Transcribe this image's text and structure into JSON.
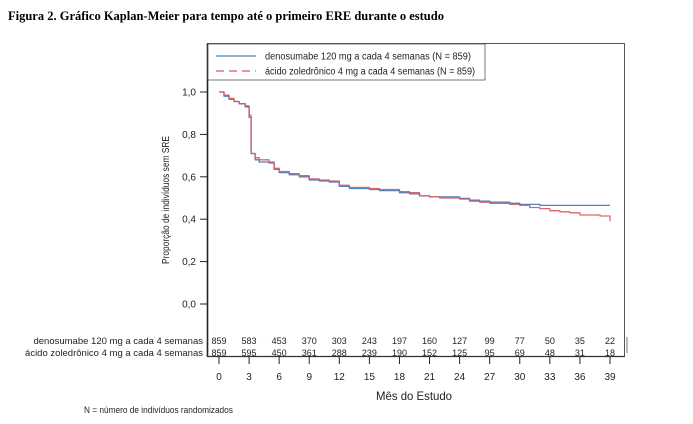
{
  "figure_title": "Figura 2. Gráfico Kaplan-Meier para tempo até o primeiro ERE durante o estudo",
  "footnote": "N = número de indivíduos randomizados",
  "chart_data": {
    "type": "line",
    "title": "Figura 2. Gráfico Kaplan-Meier para tempo até o primeiro ERE durante o estudo",
    "xlabel": "Mês do Estudo",
    "ylabel": "Proporção de indivíduos sem SRE",
    "xlim": [
      0,
      39
    ],
    "ylim": [
      0.0,
      1.0
    ],
    "x_ticks": [
      0,
      3,
      6,
      9,
      12,
      15,
      18,
      21,
      24,
      27,
      30,
      33,
      36,
      39
    ],
    "x_tick_labels": [
      "0",
      "3",
      "6",
      "9",
      "12",
      "15",
      "18",
      "21",
      "24",
      "27",
      "30",
      "33",
      "36",
      "39"
    ],
    "y_ticks": [
      0.0,
      0.2,
      0.4,
      0.6,
      0.8,
      1.0
    ],
    "y_tick_labels": [
      "0,0",
      "0,2",
      "0,4",
      "0,6",
      "0,8",
      "1,0"
    ],
    "grid": false,
    "legend_position": "top",
    "series": [
      {
        "name": "denosumabe 120 mg a cada 4 semanas (N = 859)",
        "color": "#4a86c0",
        "style": "solid",
        "points": [
          [
            0,
            1.0
          ],
          [
            0.5,
            0.98
          ],
          [
            1,
            0.965
          ],
          [
            1.5,
            0.955
          ],
          [
            2,
            0.945
          ],
          [
            2.6,
            0.93
          ],
          [
            3,
            0.88
          ],
          [
            3.2,
            0.71
          ],
          [
            3.6,
            0.68
          ],
          [
            4,
            0.67
          ],
          [
            5,
            0.665
          ],
          [
            5.5,
            0.635
          ],
          [
            6,
            0.62
          ],
          [
            7,
            0.61
          ],
          [
            8,
            0.6
          ],
          [
            9,
            0.585
          ],
          [
            10,
            0.58
          ],
          [
            11,
            0.575
          ],
          [
            12,
            0.555
          ],
          [
            13,
            0.545
          ],
          [
            15,
            0.54
          ],
          [
            16,
            0.535
          ],
          [
            18,
            0.525
          ],
          [
            19,
            0.52
          ],
          [
            20,
            0.51
          ],
          [
            21,
            0.505
          ],
          [
            22,
            0.505
          ],
          [
            24,
            0.498
          ],
          [
            25,
            0.49
          ],
          [
            26,
            0.485
          ],
          [
            27,
            0.48
          ],
          [
            29,
            0.475
          ],
          [
            30,
            0.47
          ],
          [
            31,
            0.47
          ],
          [
            32,
            0.465
          ],
          [
            33,
            0.465
          ],
          [
            36,
            0.465
          ],
          [
            39,
            0.465
          ]
        ]
      },
      {
        "name": "ácido zoledrônico 4 mg a cada 4 semanas (N = 859)",
        "color": "#d9575e",
        "style": "dashed",
        "points": [
          [
            0,
            1.0
          ],
          [
            0.5,
            0.985
          ],
          [
            1,
            0.97
          ],
          [
            1.5,
            0.955
          ],
          [
            2,
            0.945
          ],
          [
            2.6,
            0.935
          ],
          [
            3,
            0.89
          ],
          [
            3.2,
            0.71
          ],
          [
            3.6,
            0.69
          ],
          [
            4,
            0.68
          ],
          [
            5,
            0.67
          ],
          [
            5.5,
            0.64
          ],
          [
            6,
            0.625
          ],
          [
            7,
            0.615
          ],
          [
            8,
            0.605
          ],
          [
            9,
            0.59
          ],
          [
            10,
            0.585
          ],
          [
            11,
            0.58
          ],
          [
            12,
            0.56
          ],
          [
            13,
            0.55
          ],
          [
            15,
            0.545
          ],
          [
            16,
            0.54
          ],
          [
            18,
            0.53
          ],
          [
            19,
            0.525
          ],
          [
            20,
            0.51
          ],
          [
            21,
            0.505
          ],
          [
            22,
            0.5
          ],
          [
            24,
            0.495
          ],
          [
            25,
            0.485
          ],
          [
            26,
            0.48
          ],
          [
            27,
            0.475
          ],
          [
            29,
            0.47
          ],
          [
            30,
            0.465
          ],
          [
            31,
            0.455
          ],
          [
            32,
            0.45
          ],
          [
            33,
            0.44
          ],
          [
            34,
            0.435
          ],
          [
            35,
            0.43
          ],
          [
            36,
            0.42
          ],
          [
            38,
            0.415
          ],
          [
            39,
            0.415
          ],
          [
            39,
            0.39
          ]
        ]
      }
    ],
    "risk_table": {
      "rows": [
        {
          "label": "denosumabe 120 mg a cada 4 semanas",
          "values": [
            "859",
            "583",
            "453",
            "370",
            "303",
            "243",
            "197",
            "160",
            "127",
            "99",
            "77",
            "50",
            "35",
            "22"
          ]
        },
        {
          "label": "ácido zoledrônico 4 mg a cada 4 semanas",
          "values": [
            "859",
            "595",
            "450",
            "361",
            "288",
            "239",
            "190",
            "152",
            "125",
            "95",
            "69",
            "48",
            "31",
            "18"
          ]
        }
      ]
    }
  }
}
